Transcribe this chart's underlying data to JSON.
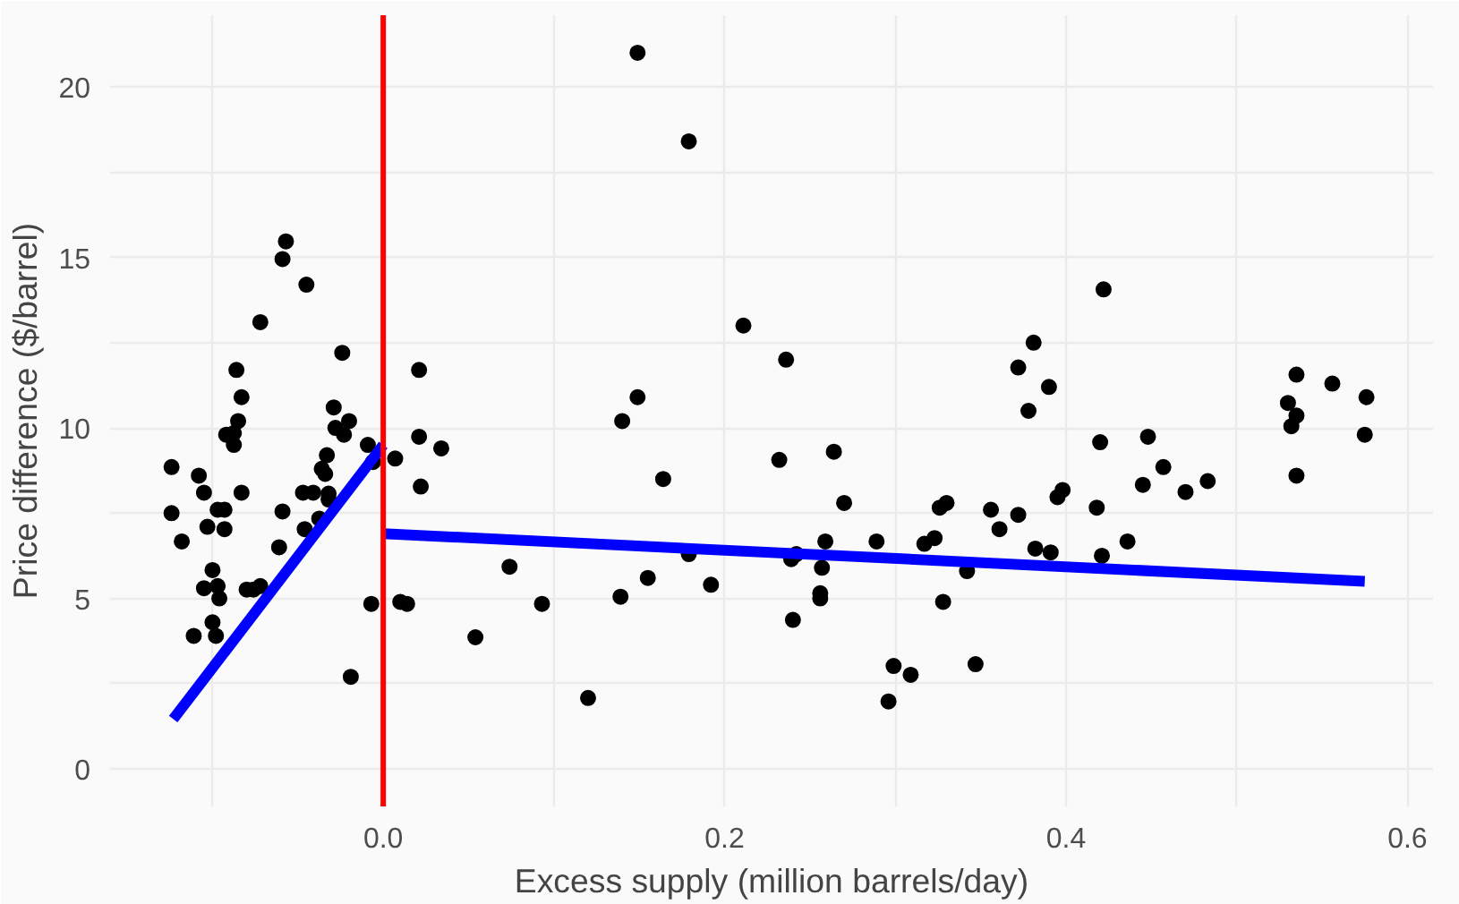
{
  "chart_data": {
    "type": "scatter",
    "xlabel": "Excess supply (million barrels/day)",
    "ylabel": "Price difference ($/barrel)",
    "xlim": [
      -0.16,
      0.615
    ],
    "ylim": [
      -1.1,
      22.1
    ],
    "xticks": [
      {
        "value": -0.1,
        "label": null
      },
      "0.0",
      {
        "value": 0.1,
        "label": null
      },
      0.2,
      {
        "value": 0.3,
        "label": null
      },
      0.4,
      {
        "value": 0.5,
        "label": null
      },
      0.6
    ],
    "yticks": [
      0,
      {
        "value": 2.5,
        "label": null
      },
      5,
      {
        "value": 7.5,
        "label": null
      },
      10,
      {
        "value": 12.5,
        "label": null
      },
      15,
      {
        "value": 17.5,
        "label": null
      },
      20
    ],
    "grid": true,
    "marker": "circle",
    "ref_lines": [
      {
        "axis": "x",
        "value": 0,
        "color": "#ff0000",
        "line_style": "solid"
      }
    ],
    "series": [
      {
        "color": "#000000",
        "x": [
          -0.124,
          -0.124,
          -0.118,
          -0.111,
          -0.108,
          -0.105,
          -0.103,
          -0.105,
          -0.1,
          -0.1,
          -0.098,
          -0.097,
          -0.097,
          -0.096,
          -0.093,
          -0.093,
          -0.092,
          -0.0875,
          -0.0875,
          -0.086,
          -0.085,
          -0.083,
          -0.083,
          -0.08,
          -0.076,
          -0.072,
          -0.072,
          -0.061,
          -0.059,
          -0.059,
          -0.057,
          -0.046,
          -0.045,
          -0.047,
          -0.041,
          -0.0375,
          -0.036,
          -0.034,
          -0.033,
          -0.032,
          -0.032,
          -0.029,
          -0.028,
          -0.024,
          -0.023,
          -0.02,
          -0.019,
          -0.009,
          -0.007,
          -0.006,
          0.007,
          0.01,
          0.014,
          0.021,
          0.021,
          0.022,
          0.034,
          0.149,
          0.179,
          0.211,
          0.236,
          0.149,
          0.14,
          0.164,
          0.232,
          0.264,
          0.27,
          0.259,
          0.289,
          0.242,
          0.239,
          0.179,
          0.257,
          0.256,
          0.256,
          0.24,
          0.192,
          0.155,
          0.139,
          0.074,
          0.093,
          0.054,
          0.12,
          0.299,
          0.309,
          0.296,
          0.317,
          0.323,
          0.326,
          0.33,
          0.328,
          0.342,
          0.347,
          0.356,
          0.361,
          0.372,
          0.372,
          0.381,
          0.39,
          0.378,
          0.382,
          0.391,
          0.395,
          0.398,
          0.42,
          0.418,
          0.421,
          0.422,
          0.436,
          0.445,
          0.448,
          0.457,
          0.47,
          0.483,
          0.53,
          0.535,
          0.535,
          0.532,
          0.535,
          0.556,
          0.576,
          0.575
        ],
        "values": [
          8.85,
          7.5,
          6.67,
          3.9,
          8.6,
          8.1,
          7.1,
          5.3,
          5.83,
          4.3,
          3.9,
          5.36,
          7.6,
          5.0,
          7.6,
          7.03,
          9.8,
          9.85,
          9.5,
          11.7,
          10.2,
          10.9,
          8.1,
          5.26,
          5.26,
          13.1,
          5.36,
          6.5,
          7.55,
          14.95,
          15.47,
          7.03,
          14.2,
          8.1,
          8.1,
          7.34,
          8.8,
          8.65,
          9.2,
          8.07,
          7.9,
          10.6,
          10.0,
          12.2,
          9.8,
          10.2,
          2.7,
          9.5,
          4.84,
          9.0,
          9.1,
          4.9,
          4.84,
          11.7,
          9.74,
          8.28,
          9.4,
          21.0,
          18.4,
          13.0,
          12.0,
          10.9,
          10.2,
          8.5,
          9.06,
          9.3,
          7.8,
          6.67,
          6.67,
          6.3,
          6.15,
          6.3,
          5.9,
          5.15,
          5.0,
          4.37,
          5.4,
          5.6,
          5.05,
          5.93,
          4.84,
          3.86,
          2.08,
          3.02,
          2.76,
          1.98,
          6.6,
          6.77,
          7.66,
          7.8,
          4.9,
          5.8,
          3.07,
          7.6,
          7.03,
          7.45,
          11.77,
          12.5,
          11.2,
          10.5,
          6.46,
          6.35,
          7.97,
          8.18,
          9.58,
          7.66,
          6.25,
          14.06,
          6.67,
          8.33,
          9.74,
          8.85,
          8.12,
          8.44,
          10.73,
          11.56,
          10.36,
          10.05,
          8.6,
          11.3,
          10.9,
          9.8
        ]
      },
      {
        "type": "line",
        "color": "#0000ff",
        "marker": "none",
        "x": [
          -0.123,
          0
        ],
        "values": [
          1.46,
          9.5
        ]
      },
      {
        "type": "line",
        "color": "#0000ff",
        "marker": "none",
        "x": [
          0,
          0.575
        ],
        "values": [
          6.9,
          5.5
        ]
      }
    ]
  }
}
